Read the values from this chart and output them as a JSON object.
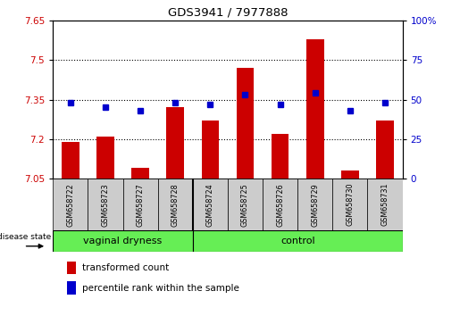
{
  "title": "GDS3941 / 7977888",
  "samples": [
    "GSM658722",
    "GSM658723",
    "GSM658727",
    "GSM658728",
    "GSM658724",
    "GSM658725",
    "GSM658726",
    "GSM658729",
    "GSM658730",
    "GSM658731"
  ],
  "red_values": [
    7.19,
    7.21,
    7.09,
    7.32,
    7.27,
    7.47,
    7.22,
    7.58,
    7.08,
    7.27
  ],
  "blue_values": [
    48,
    45,
    43,
    48,
    47,
    53,
    47,
    54,
    43,
    48
  ],
  "ylim_left": [
    7.05,
    7.65
  ],
  "ylim_right": [
    0,
    100
  ],
  "yticks_left": [
    7.05,
    7.2,
    7.35,
    7.5,
    7.65
  ],
  "yticks_right": [
    0,
    25,
    50,
    75,
    100
  ],
  "ytick_labels_left": [
    "7.05",
    "7.2",
    "7.35",
    "7.5",
    "7.65"
  ],
  "ytick_labels_right": [
    "0",
    "25",
    "50",
    "75",
    "100%"
  ],
  "group1_label": "vaginal dryness",
  "group2_label": "control",
  "group1_count": 4,
  "group2_count": 6,
  "disease_state_label": "disease state",
  "legend_red": "transformed count",
  "legend_blue": "percentile rank within the sample",
  "bar_color": "#cc0000",
  "dot_color": "#0000cc",
  "background_color": "#ffffff",
  "group_bg": "#66ee55",
  "sample_bg": "#cccccc",
  "bar_bottom": 7.05,
  "grid_dotted_at": [
    7.2,
    7.35,
    7.5
  ],
  "bar_width": 0.5
}
